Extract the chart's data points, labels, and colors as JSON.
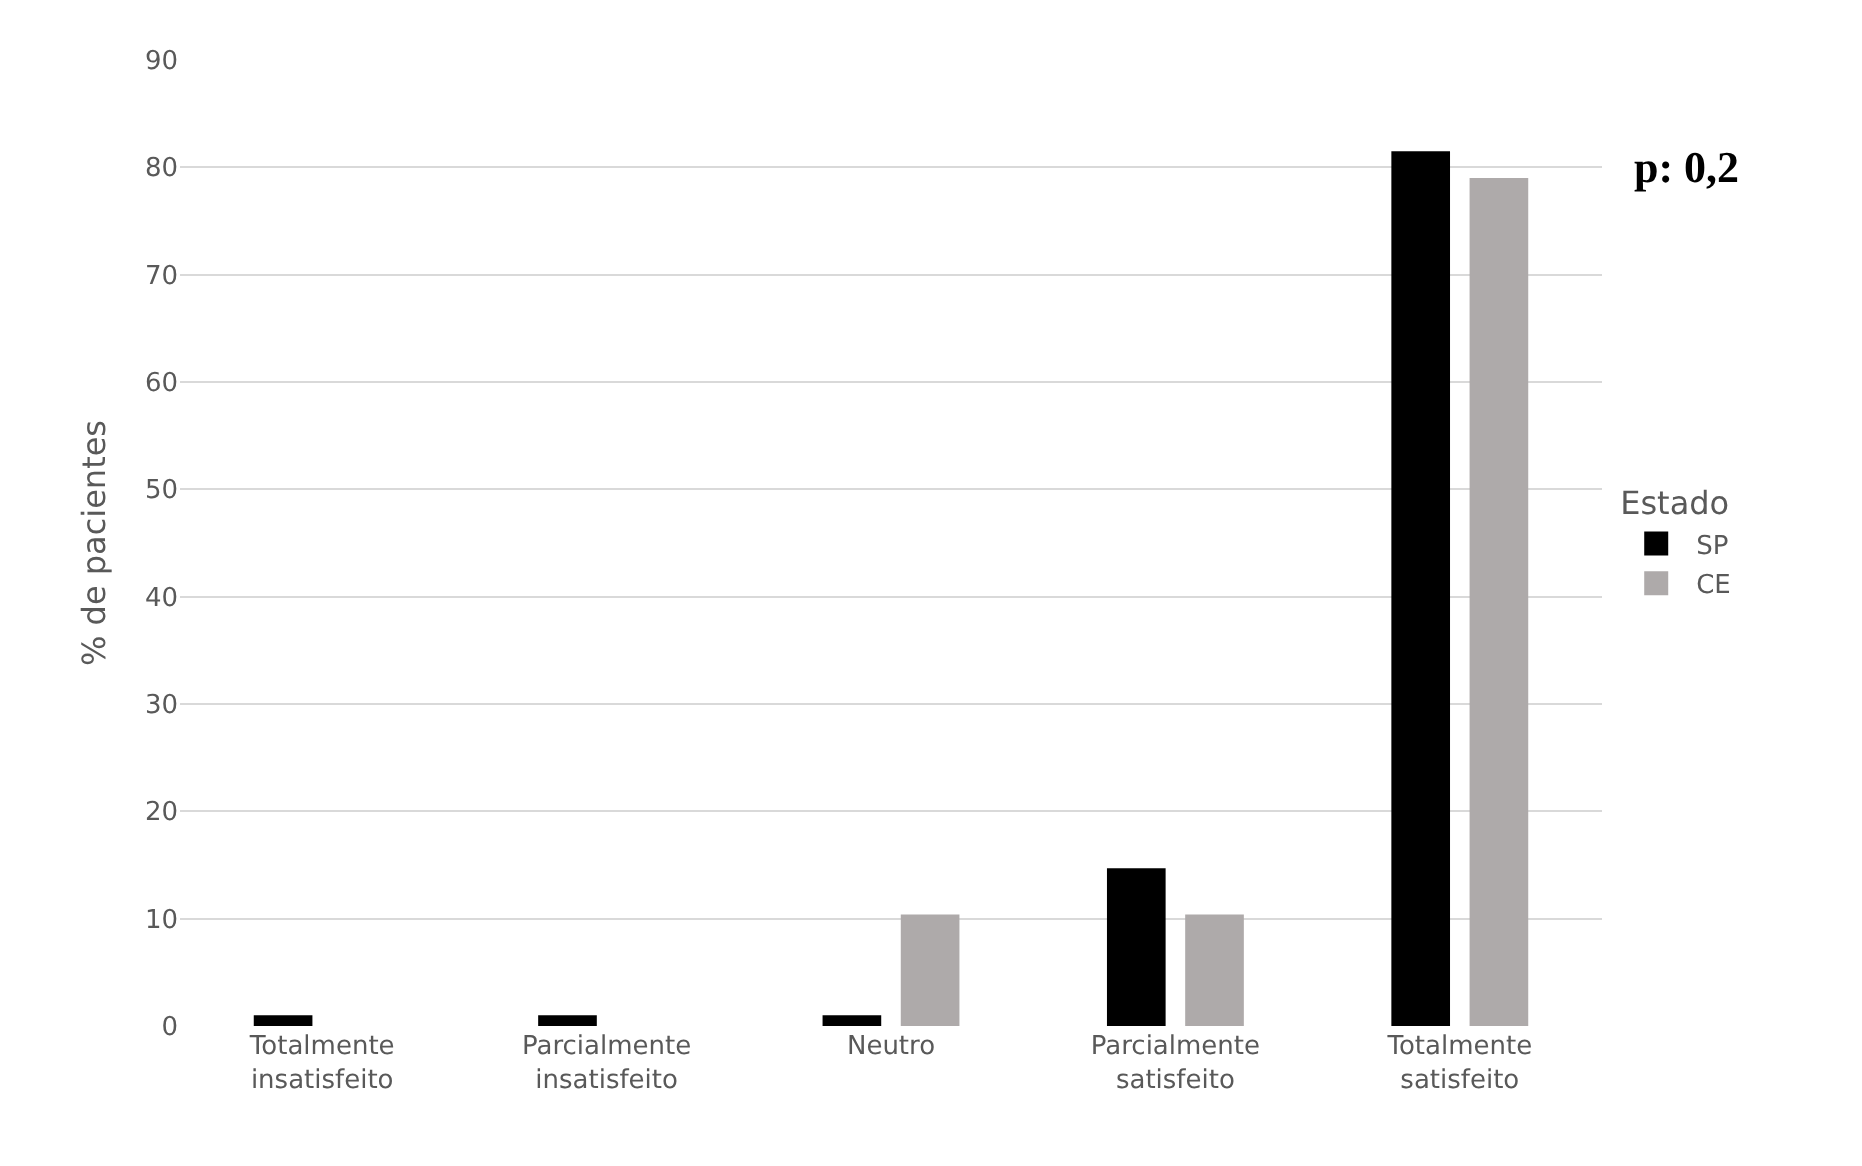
{
  "chart_data": {
    "type": "bar",
    "ylabel": "% de pacientes",
    "legend_title": "Estado",
    "categories": [
      "Totalmente insatisfeito",
      "Parcialmente insatisfeito",
      "Neutro",
      "Parcialmente satisfeito",
      "Totalmente satisfeito"
    ],
    "series": [
      {
        "name": "SP",
        "color": "#000000",
        "values": [
          1.0,
          1.0,
          1.0,
          14.7,
          81.5
        ]
      },
      {
        "name": "CE",
        "color": "#aeaaaa",
        "values": [
          0,
          0,
          10.4,
          10.4,
          79.0
        ]
      }
    ],
    "ylim": [
      0,
      90
    ],
    "yticks": [
      0,
      10,
      20,
      30,
      40,
      50,
      60,
      70,
      80,
      90
    ],
    "grid": "y",
    "legend": "right",
    "annotations": [
      "p: 0,2"
    ]
  }
}
